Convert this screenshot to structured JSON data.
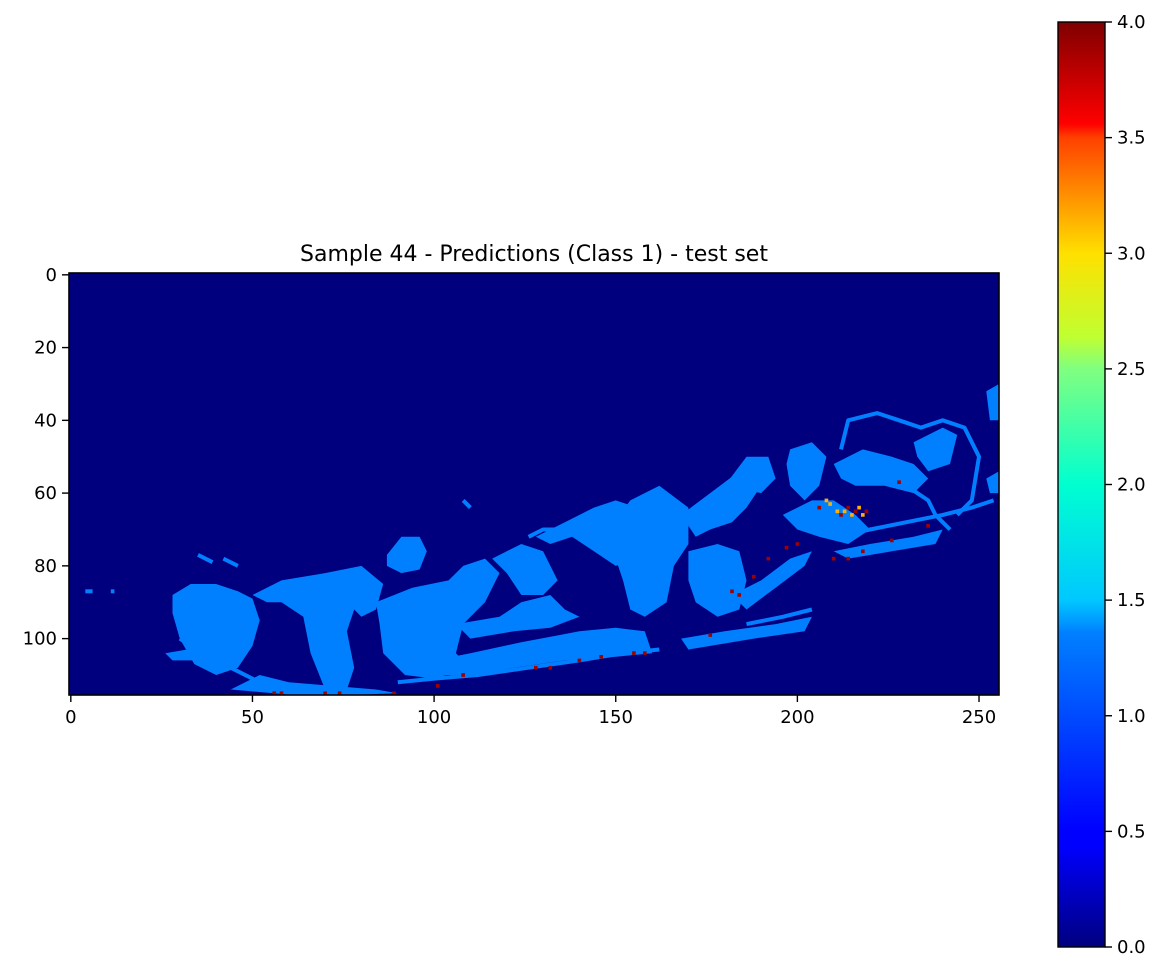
{
  "chart_data": {
    "type": "heatmap",
    "title": "Sample 44 - Predictions (Class 1) - test set",
    "colormap": "jet",
    "background_color": "#00007f",
    "image_shape": {
      "rows": 116,
      "cols": 256
    },
    "xlim": [
      -0.5,
      255.5
    ],
    "ylim": [
      115.5,
      -0.5
    ],
    "x_ticks": [
      0,
      50,
      100,
      150,
      200,
      250
    ],
    "x_tick_labels": [
      "0",
      "50",
      "100",
      "150",
      "200",
      "250"
    ],
    "y_ticks": [
      0,
      20,
      40,
      60,
      80,
      100
    ],
    "y_tick_labels": [
      "0",
      "20",
      "40",
      "60",
      "80",
      "100"
    ],
    "colorbar": {
      "range": [
        0.0,
        4.0
      ],
      "ticks": [
        0.0,
        0.5,
        1.0,
        1.5,
        2.0,
        2.5,
        3.0,
        3.5,
        4.0
      ],
      "tick_labels": [
        "0.0",
        "0.5",
        "1.0",
        "1.5",
        "2.0",
        "2.5",
        "3.0",
        "3.5",
        "4.0"
      ]
    },
    "value_colors": {
      "0": "#00007f",
      "1": "#0080ff",
      "3": "#ffb000",
      "4": "#a00000"
    },
    "regions": [
      {
        "value": 1,
        "points": [
          [
            28,
            88
          ],
          [
            33,
            85
          ],
          [
            40,
            85
          ],
          [
            46,
            87
          ],
          [
            50,
            89
          ],
          [
            52,
            95
          ],
          [
            50,
            102
          ],
          [
            46,
            108
          ],
          [
            40,
            110
          ],
          [
            34,
            107
          ],
          [
            30,
            100
          ],
          [
            28,
            93
          ]
        ]
      },
      {
        "value": 1,
        "points": [
          [
            50,
            88
          ],
          [
            58,
            84
          ],
          [
            70,
            82
          ],
          [
            80,
            80
          ],
          [
            86,
            85
          ],
          [
            84,
            92
          ],
          [
            80,
            94
          ],
          [
            78,
            92
          ],
          [
            76,
            98
          ],
          [
            78,
            108
          ],
          [
            76,
            114
          ],
          [
            70,
            114
          ],
          [
            66,
            104
          ],
          [
            64,
            94
          ],
          [
            58,
            90
          ],
          [
            54,
            90
          ]
        ]
      },
      {
        "value": 1,
        "points": [
          [
            52,
            110
          ],
          [
            60,
            112
          ],
          [
            72,
            113
          ],
          [
            84,
            114
          ],
          [
            90,
            115
          ],
          [
            80,
            115.4
          ],
          [
            60,
            115.4
          ],
          [
            44,
            114
          ]
        ]
      },
      {
        "value": 1,
        "points": [
          [
            84,
            90
          ],
          [
            94,
            86
          ],
          [
            104,
            84
          ],
          [
            108,
            80
          ],
          [
            114,
            78
          ],
          [
            118,
            82
          ],
          [
            114,
            90
          ],
          [
            108,
            96
          ],
          [
            106,
            104
          ],
          [
            110,
            108
          ],
          [
            100,
            111
          ],
          [
            92,
            110
          ],
          [
            86,
            104
          ],
          [
            85,
            96
          ]
        ]
      },
      {
        "value": 1,
        "points": [
          [
            87,
            77
          ],
          [
            91,
            72
          ],
          [
            96,
            72
          ],
          [
            98,
            76
          ],
          [
            96,
            81
          ],
          [
            91,
            82
          ],
          [
            87,
            80
          ]
        ]
      },
      {
        "value": 1,
        "points": [
          [
            100,
            106
          ],
          [
            110,
            104
          ],
          [
            124,
            101
          ],
          [
            140,
            98
          ],
          [
            150,
            97
          ],
          [
            158,
            98
          ],
          [
            160,
            104
          ],
          [
            150,
            105
          ],
          [
            136,
            106
          ],
          [
            122,
            108
          ],
          [
            110,
            110
          ],
          [
            102,
            110
          ]
        ]
      },
      {
        "value": 1,
        "points": [
          [
            106,
            96
          ],
          [
            118,
            94
          ],
          [
            124,
            90
          ],
          [
            132,
            88
          ],
          [
            136,
            92
          ],
          [
            140,
            94
          ],
          [
            132,
            97
          ],
          [
            122,
            98
          ],
          [
            110,
            100
          ]
        ]
      },
      {
        "value": 1,
        "points": [
          [
            116,
            78
          ],
          [
            124,
            74
          ],
          [
            130,
            76
          ],
          [
            134,
            84
          ],
          [
            130,
            88
          ],
          [
            124,
            88
          ],
          [
            120,
            82
          ]
        ]
      },
      {
        "value": 1,
        "points": [
          [
            128,
            72
          ],
          [
            136,
            68
          ],
          [
            144,
            64
          ],
          [
            150,
            62
          ],
          [
            156,
            64
          ],
          [
            158,
            70
          ],
          [
            156,
            78
          ],
          [
            150,
            80
          ],
          [
            144,
            76
          ],
          [
            138,
            72
          ],
          [
            132,
            74
          ]
        ]
      },
      {
        "value": 1,
        "points": [
          [
            148,
            70
          ],
          [
            154,
            62
          ],
          [
            162,
            58
          ],
          [
            170,
            64
          ],
          [
            170,
            74
          ],
          [
            166,
            80
          ],
          [
            164,
            90
          ],
          [
            158,
            94
          ],
          [
            154,
            92
          ],
          [
            152,
            84
          ],
          [
            150,
            78
          ]
        ]
      },
      {
        "value": 1,
        "points": [
          [
            168,
            66
          ],
          [
            176,
            60
          ],
          [
            184,
            54
          ],
          [
            188,
            52
          ],
          [
            190,
            58
          ],
          [
            186,
            64
          ],
          [
            182,
            68
          ],
          [
            176,
            70
          ],
          [
            172,
            72
          ]
        ]
      },
      {
        "value": 1,
        "points": [
          [
            170,
            76
          ],
          [
            178,
            74
          ],
          [
            184,
            76
          ],
          [
            186,
            84
          ],
          [
            184,
            92
          ],
          [
            178,
            94
          ],
          [
            172,
            90
          ],
          [
            170,
            84
          ]
        ]
      },
      {
        "value": 1,
        "points": [
          [
            180,
            58
          ],
          [
            186,
            50
          ],
          [
            192,
            50
          ],
          [
            194,
            56
          ],
          [
            190,
            60
          ]
        ]
      },
      {
        "value": 1,
        "points": [
          [
            198,
            48
          ],
          [
            204,
            46
          ],
          [
            208,
            50
          ],
          [
            206,
            58
          ],
          [
            202,
            62
          ],
          [
            198,
            58
          ],
          [
            197,
            52
          ]
        ]
      },
      {
        "value": 1,
        "points": [
          [
            196,
            66
          ],
          [
            204,
            62
          ],
          [
            210,
            62
          ],
          [
            216,
            66
          ],
          [
            220,
            70
          ],
          [
            214,
            74
          ],
          [
            206,
            72
          ],
          [
            200,
            70
          ]
        ]
      },
      {
        "value": 1,
        "points": [
          [
            210,
            52
          ],
          [
            218,
            48
          ],
          [
            226,
            50
          ],
          [
            232,
            52
          ],
          [
            236,
            56
          ],
          [
            232,
            60
          ],
          [
            224,
            58
          ],
          [
            216,
            58
          ],
          [
            212,
            56
          ]
        ]
      },
      {
        "value": 1,
        "points": [
          [
            232,
            46
          ],
          [
            240,
            42
          ],
          [
            244,
            44
          ],
          [
            242,
            52
          ],
          [
            236,
            54
          ],
          [
            233,
            50
          ]
        ]
      },
      {
        "value": 1,
        "points": [
          [
            252,
            32
          ],
          [
            255.5,
            30
          ],
          [
            255.5,
            40
          ],
          [
            253,
            40
          ]
        ]
      },
      {
        "value": 1,
        "points": [
          [
            252,
            56
          ],
          [
            255.5,
            54
          ],
          [
            255.5,
            60
          ],
          [
            253,
            60
          ]
        ]
      },
      {
        "value": 1,
        "points": [
          [
            210,
            76
          ],
          [
            220,
            74
          ],
          [
            232,
            72
          ],
          [
            240,
            70
          ],
          [
            238,
            74
          ],
          [
            226,
            76
          ],
          [
            214,
            78
          ]
        ]
      },
      {
        "value": 1,
        "points": [
          [
            168,
            100
          ],
          [
            180,
            98
          ],
          [
            194,
            96
          ],
          [
            204,
            94
          ],
          [
            202,
            98
          ],
          [
            188,
            100
          ],
          [
            176,
            102
          ],
          [
            170,
            103
          ]
        ]
      },
      {
        "value": 1,
        "points": [
          [
            182,
            88
          ],
          [
            190,
            84
          ],
          [
            198,
            78
          ],
          [
            204,
            76
          ],
          [
            202,
            80
          ],
          [
            194,
            86
          ],
          [
            186,
            92
          ]
        ]
      },
      {
        "value": 1,
        "points": [
          [
            26,
            104
          ],
          [
            32,
            103
          ],
          [
            38,
            104
          ],
          [
            34,
            106
          ],
          [
            28,
            106
          ]
        ]
      }
    ],
    "lines": [
      {
        "value": 1,
        "points": [
          [
            4,
            87
          ],
          [
            6,
            87
          ]
        ]
      },
      {
        "value": 1,
        "points": [
          [
            11,
            87
          ],
          [
            12,
            87
          ]
        ]
      },
      {
        "value": 1,
        "points": [
          [
            35,
            77
          ],
          [
            39,
            79
          ]
        ]
      },
      {
        "value": 1,
        "points": [
          [
            42,
            78
          ],
          [
            46,
            80
          ]
        ]
      },
      {
        "value": 1,
        "points": [
          [
            90,
            112
          ],
          [
            100,
            111
          ],
          [
            112,
            110
          ],
          [
            126,
            108
          ],
          [
            140,
            106
          ],
          [
            152,
            104
          ],
          [
            162,
            103
          ]
        ]
      },
      {
        "value": 1,
        "points": [
          [
            210,
            72
          ],
          [
            220,
            70
          ],
          [
            230,
            68
          ],
          [
            240,
            66
          ],
          [
            248,
            64
          ],
          [
            254,
            62
          ]
        ]
      },
      {
        "value": 1,
        "points": [
          [
            212,
            48
          ],
          [
            214,
            40
          ],
          [
            222,
            38
          ],
          [
            228,
            40
          ],
          [
            234,
            42
          ],
          [
            240,
            40
          ],
          [
            246,
            42
          ],
          [
            250,
            50
          ],
          [
            248,
            62
          ],
          [
            244,
            66
          ]
        ]
      },
      {
        "value": 1,
        "points": [
          [
            230,
            58
          ],
          [
            236,
            62
          ],
          [
            238,
            66
          ],
          [
            242,
            70
          ]
        ]
      },
      {
        "value": 1,
        "points": [
          [
            30,
            100
          ],
          [
            36,
            104
          ],
          [
            44,
            108
          ],
          [
            52,
            112
          ]
        ]
      },
      {
        "value": 1,
        "points": [
          [
            108,
            62
          ],
          [
            110,
            64
          ]
        ]
      },
      {
        "value": 1,
        "points": [
          [
            126,
            72
          ],
          [
            130,
            70
          ],
          [
            136,
            70
          ]
        ]
      },
      {
        "value": 1,
        "points": [
          [
            186,
            96
          ],
          [
            196,
            94
          ],
          [
            204,
            92
          ]
        ]
      }
    ],
    "pixels": [
      {
        "value": 4,
        "points": [
          [
            56,
            115
          ],
          [
            58,
            115
          ],
          [
            70,
            115
          ],
          [
            74,
            115
          ],
          [
            89,
            115
          ],
          [
            101,
            113
          ],
          [
            108,
            110
          ],
          [
            128,
            108
          ],
          [
            132,
            108
          ],
          [
            140,
            106
          ],
          [
            146,
            105
          ],
          [
            155,
            104
          ],
          [
            158,
            104
          ],
          [
            176,
            99
          ],
          [
            182,
            87
          ],
          [
            184,
            88
          ],
          [
            188,
            83
          ],
          [
            192,
            78
          ],
          [
            197,
            75
          ],
          [
            200,
            74
          ],
          [
            206,
            64
          ],
          [
            210,
            78
          ],
          [
            214,
            78
          ],
          [
            218,
            76
          ],
          [
            226,
            73
          ],
          [
            228,
            57
          ],
          [
            236,
            69
          ]
        ]
      },
      {
        "value": 3,
        "points": [
          [
            208,
            62
          ],
          [
            209,
            63
          ],
          [
            211,
            65
          ],
          [
            213,
            65
          ],
          [
            215,
            66
          ],
          [
            217,
            64
          ],
          [
            218,
            66
          ]
        ]
      },
      {
        "value": 4,
        "points": [
          [
            212,
            66
          ],
          [
            214,
            64
          ],
          [
            216,
            65
          ],
          [
            219,
            65
          ]
        ]
      }
    ]
  }
}
